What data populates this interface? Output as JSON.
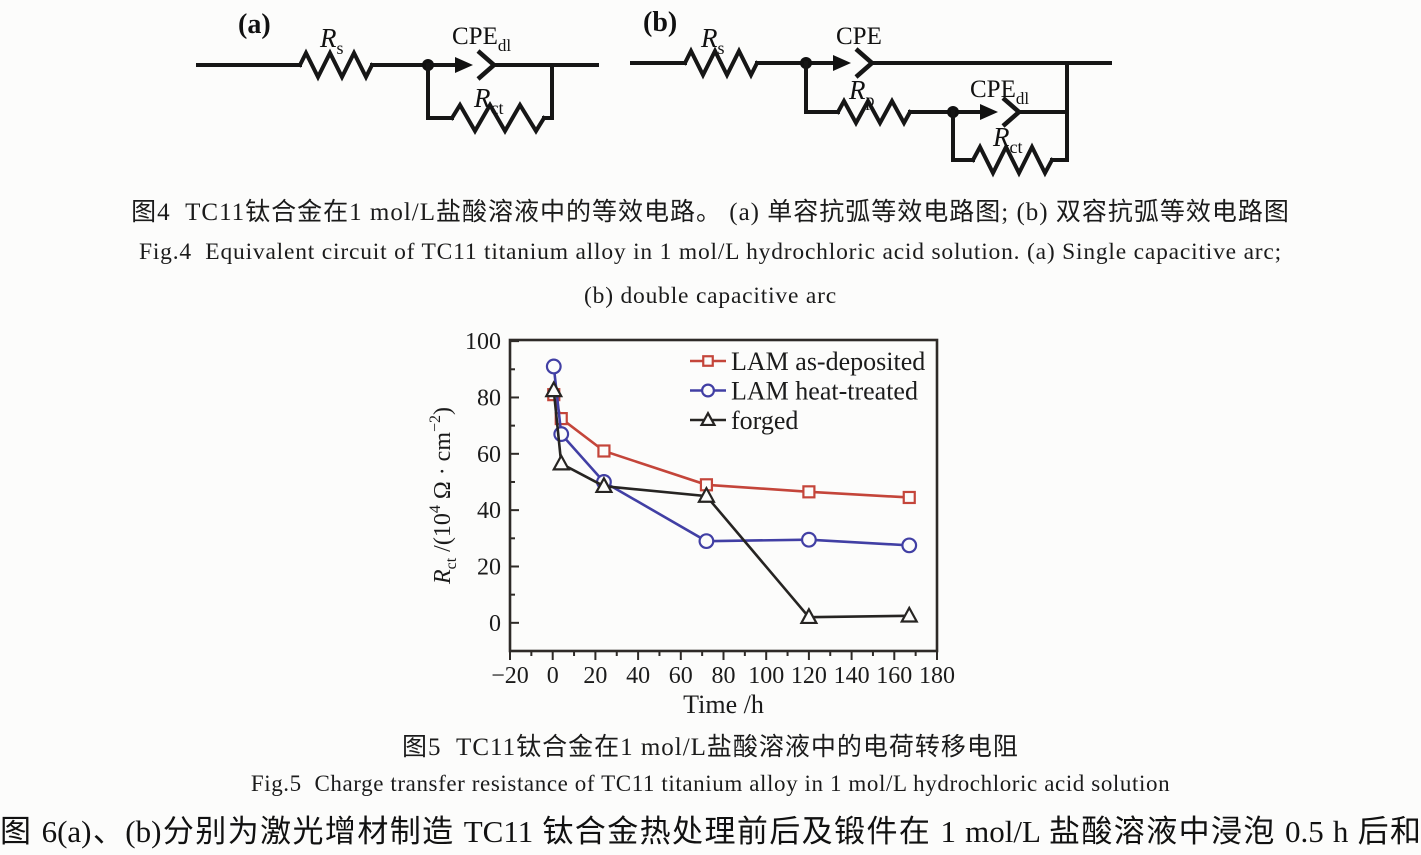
{
  "figure4": {
    "panel_a_label": "(a)",
    "panel_b_label": "(b)",
    "labels": {
      "rs": {
        "main": "R",
        "sub": "s"
      },
      "cpe_dl": {
        "main": "CPE",
        "sub": "dl"
      },
      "rct": {
        "main": "R",
        "sub": "ct"
      },
      "cpe": {
        "main": "CPE",
        "sub": ""
      },
      "rp": {
        "main": "R",
        "sub": "p"
      }
    }
  },
  "captions": {
    "fig4_zh": "图4  TC11钛合金在1 mol/L盐酸溶液中的等效电路。 (a) 单容抗弧等效电路图; (b) 双容抗弧等效电路图",
    "fig4_en_line1": "Fig.4  Equivalent circuit of TC11 titanium alloy in 1 mol/L hydrochloric acid solution. (a) Single capacitive arc;",
    "fig4_en_line2": "(b) double capacitive arc",
    "fig5_zh": "图5  TC11钛合金在1 mol/L盐酸溶液中的电荷转移电阻",
    "fig5_en": "Fig.5  Charge transfer resistance of TC11 titanium alloy in 1 mol/L hydrochloric acid solution"
  },
  "body_text": "图 6(a)、(b)分别为激光增材制造 TC11 钛合金热处理前后及锻件在 1 mol/L 盐酸溶液中浸泡 0.5 h 后和",
  "colors": {
    "ink": "#161616",
    "frame": "#2e2a27",
    "red": "#c4453a",
    "blue": "#413fa4",
    "black_series": "#262422"
  },
  "chart_data": {
    "type": "line",
    "x": [
      0.5,
      4,
      24,
      72,
      120,
      167
    ],
    "series": [
      {
        "name": "LAM as-deposited",
        "marker": "square",
        "color": "#c4453a",
        "values": [
          81,
          72.5,
          61,
          49,
          46.5,
          44.5
        ]
      },
      {
        "name": "LAM heat-treated",
        "marker": "circle",
        "color": "#413fa4",
        "values": [
          91,
          67,
          50,
          29,
          29.5,
          27.5
        ]
      },
      {
        "name": "forged",
        "marker": "triangle",
        "color": "#262422",
        "values": [
          82.5,
          56.5,
          48.5,
          45,
          2,
          2.5
        ]
      }
    ],
    "xlabel": "Time /h",
    "ylabel_parts": [
      {
        "t": "R",
        "style": "italic"
      },
      {
        "t": "ct",
        "pos": "sub"
      },
      {
        "t": " /(10"
      },
      {
        "t": "4",
        "pos": "sup"
      },
      {
        "t": " Ω · cm"
      },
      {
        "t": "−2",
        "pos": "sup"
      },
      {
        "t": ")"
      }
    ],
    "xlim": [
      -20,
      180
    ],
    "ylim": [
      -10,
      100.4
    ],
    "xtick_values": [
      -20,
      0,
      20,
      40,
      60,
      80,
      100,
      120,
      140,
      160,
      180
    ],
    "xtick_labels": [
      "−20",
      "0",
      "20",
      "40",
      "60",
      "80",
      "100",
      "120",
      "140",
      "160",
      "180"
    ],
    "ytick_values": [
      0,
      20,
      40,
      60,
      80,
      100
    ],
    "ytick_labels": [
      "0",
      "20",
      "40",
      "60",
      "80",
      "100"
    ],
    "minor_x_step": 10,
    "minor_y_step": 10,
    "grid": false,
    "legend_position": "upper-right"
  }
}
